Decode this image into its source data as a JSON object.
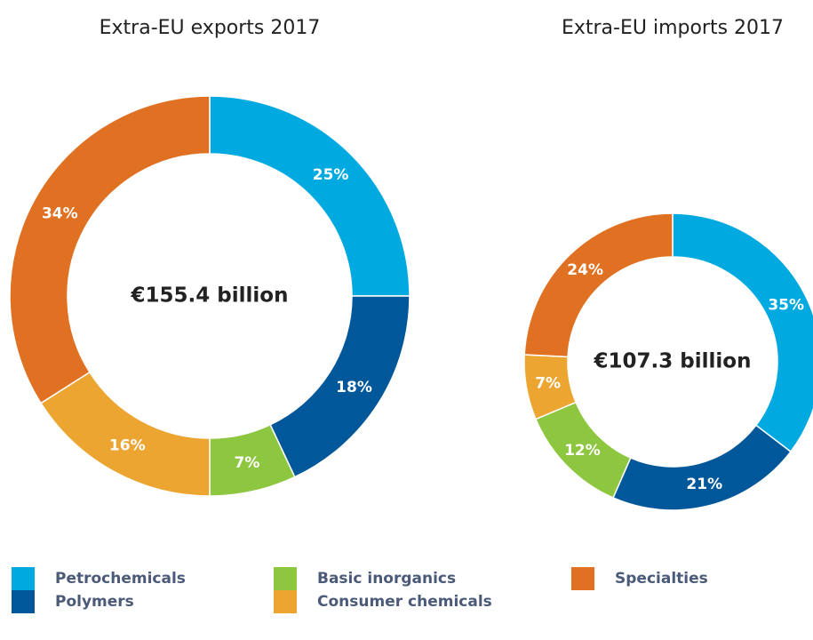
{
  "chart_data": [
    {
      "type": "pie",
      "title": "Extra-EU exports 2017",
      "total_label": "€155.4 billion",
      "values": [
        25,
        18,
        7,
        16,
        34
      ],
      "value_labels": [
        "25%",
        "18%",
        "7%",
        "16%",
        "34%"
      ]
    },
    {
      "type": "pie",
      "title": "Extra-EU imports 2017",
      "total_label": "€107.3 billion",
      "values": [
        35,
        21,
        12,
        7,
        24
      ],
      "value_labels": [
        "35%",
        "21%",
        "12%",
        "7%",
        "24%"
      ]
    }
  ],
  "legend": {
    "items": [
      "Petrochemicals",
      "Polymers",
      "Basic inorganics",
      "Consumer chemicals",
      "Specialties"
    ],
    "colors": [
      "#00a9e0",
      "#00579a",
      "#8dc63f",
      "#eda532",
      "#e07122"
    ]
  }
}
